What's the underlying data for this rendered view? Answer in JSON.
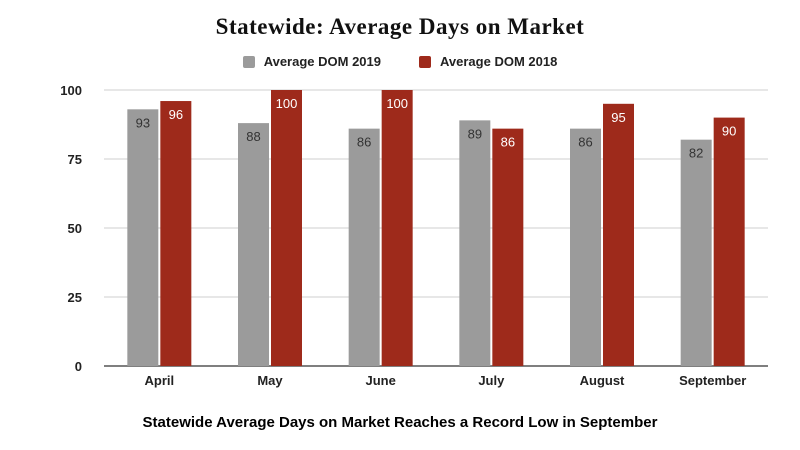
{
  "chart_data": {
    "type": "bar",
    "title": "Statewide: Average Days on Market",
    "subtitle": "Statewide Average Days on Market Reaches a Record Low in September",
    "xlabel": "",
    "ylabel": "",
    "categories": [
      "April",
      "May",
      "June",
      "July",
      "August",
      "September"
    ],
    "series": [
      {
        "name": "Average DOM 2019",
        "color": "#9b9b9b",
        "values": [
          93,
          88,
          86,
          89,
          86,
          82
        ]
      },
      {
        "name": "Average DOM 2018",
        "color": "#9e2a1b",
        "values": [
          96,
          100,
          100,
          86,
          95,
          90
        ]
      }
    ],
    "ylim": [
      0,
      100
    ],
    "yticks": [
      0,
      25,
      50,
      75,
      100
    ],
    "grid": true,
    "legend_position": "top-center",
    "data_labels": true
  }
}
